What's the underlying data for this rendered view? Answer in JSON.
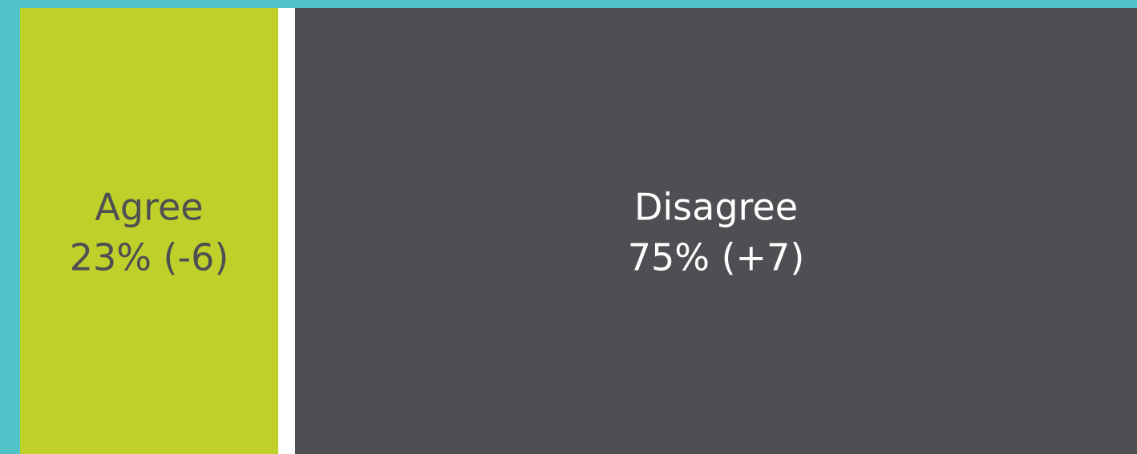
{
  "chart_data": {
    "type": "bar",
    "categories": [
      "Agree",
      "Disagree"
    ],
    "values": [
      23,
      75
    ],
    "value_labels": [
      "23% (-6)",
      "75% (+7)"
    ],
    "colors": [
      "#bfd02a",
      "#4e4f52"
    ],
    "label_colors": [
      "#4e4f52",
      "#ffffff"
    ]
  }
}
